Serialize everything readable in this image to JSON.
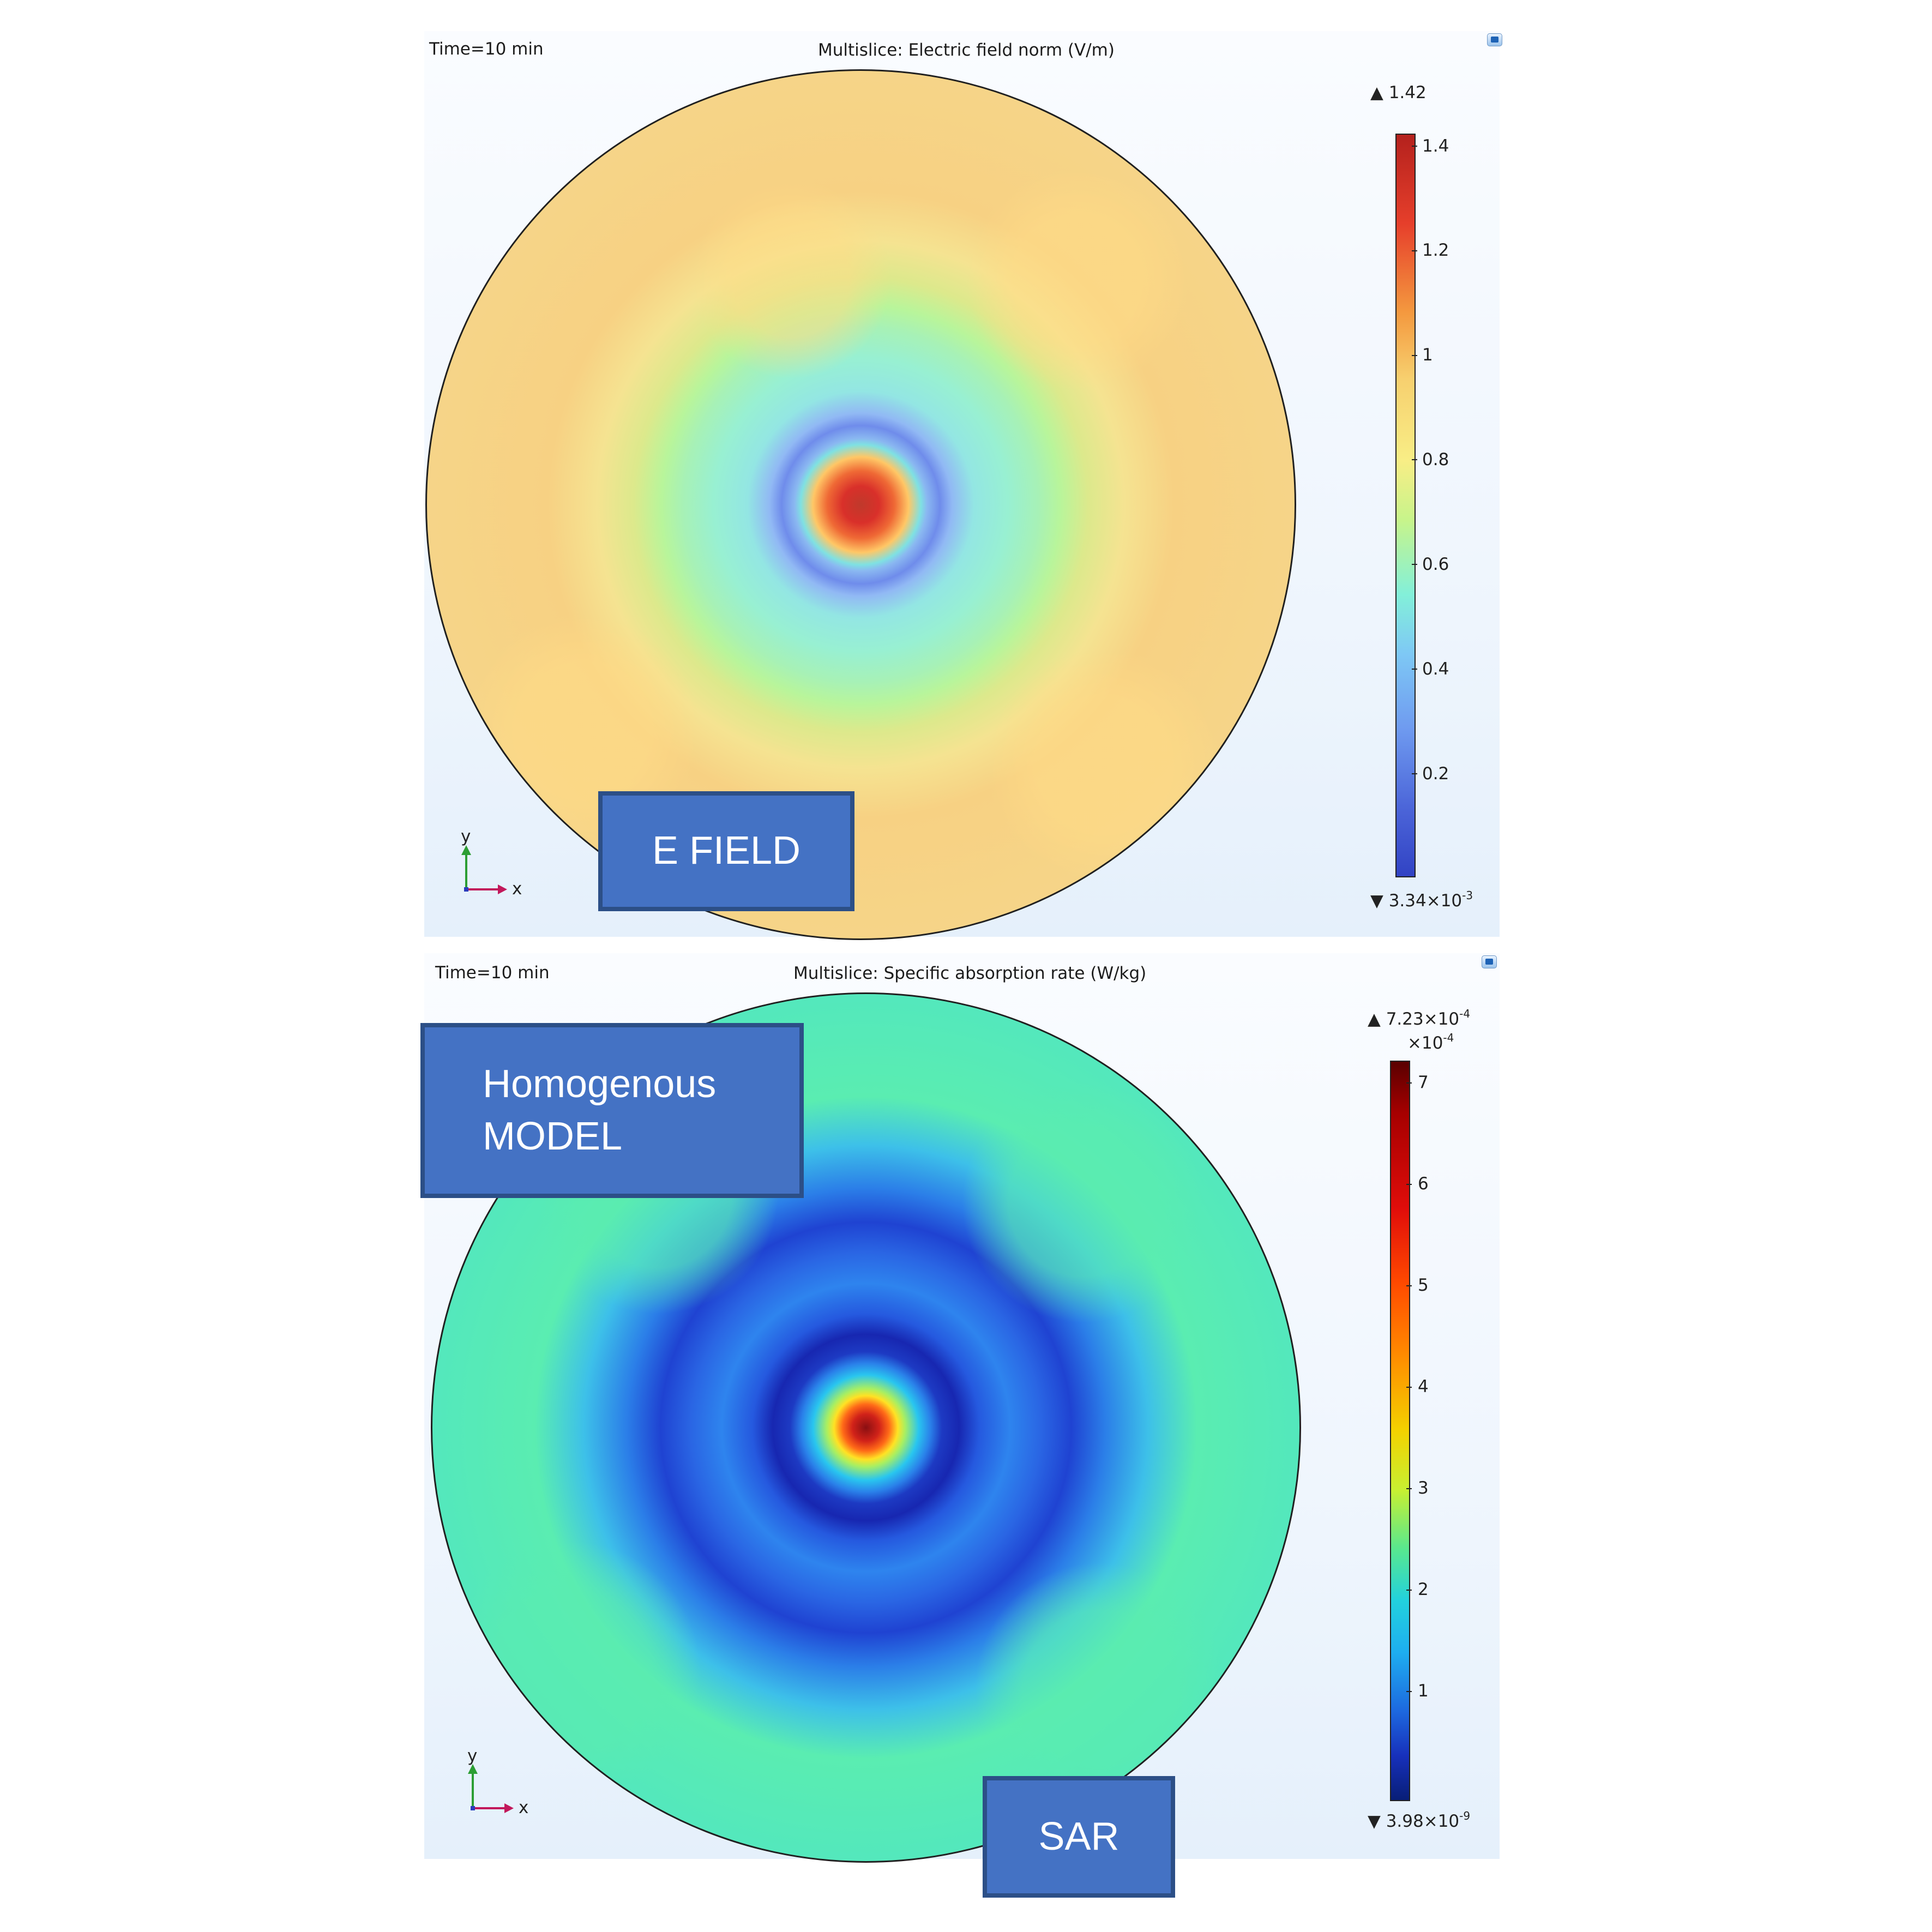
{
  "top_plot": {
    "time_label": "Time=10 min",
    "title": "Multislice: Electric field norm (V/m)",
    "legend": {
      "max_label": "1.42",
      "min_mantissa": "3.34×10",
      "min_exponent": "-3",
      "ticks": [
        "1.4",
        "1.2",
        "1",
        "0.8",
        "0.6",
        "0.4",
        "0.2"
      ],
      "colormap": "rainbow-light"
    },
    "axis_x_label": "x",
    "axis_y_label": "y",
    "overlay_label": "E FIELD",
    "icon": "plot-toolbar-icon"
  },
  "bottom_plot": {
    "time_label": "Time=10 min",
    "title": "Multislice: Specific absorption rate (W/kg)",
    "legend": {
      "max_mantissa": "7.23×10",
      "max_exponent": "-4",
      "multiplier_mantissa": "×10",
      "multiplier_exponent": "-4",
      "min_mantissa": "3.98×10",
      "min_exponent": "-9",
      "ticks": [
        "7",
        "6",
        "5",
        "4",
        "3",
        "2",
        "1"
      ],
      "colormap": "rainbow"
    },
    "axis_x_label": "x",
    "axis_y_label": "y",
    "overlay_line_1": "Homogenous",
    "overlay_line_2": "MODEL",
    "overlay_label": "SAR",
    "icon": "plot-toolbar-icon"
  },
  "colors": {
    "overlay_fill": "#4472c4",
    "overlay_border": "#2c4f87",
    "panel_background": "#eef5fd"
  }
}
